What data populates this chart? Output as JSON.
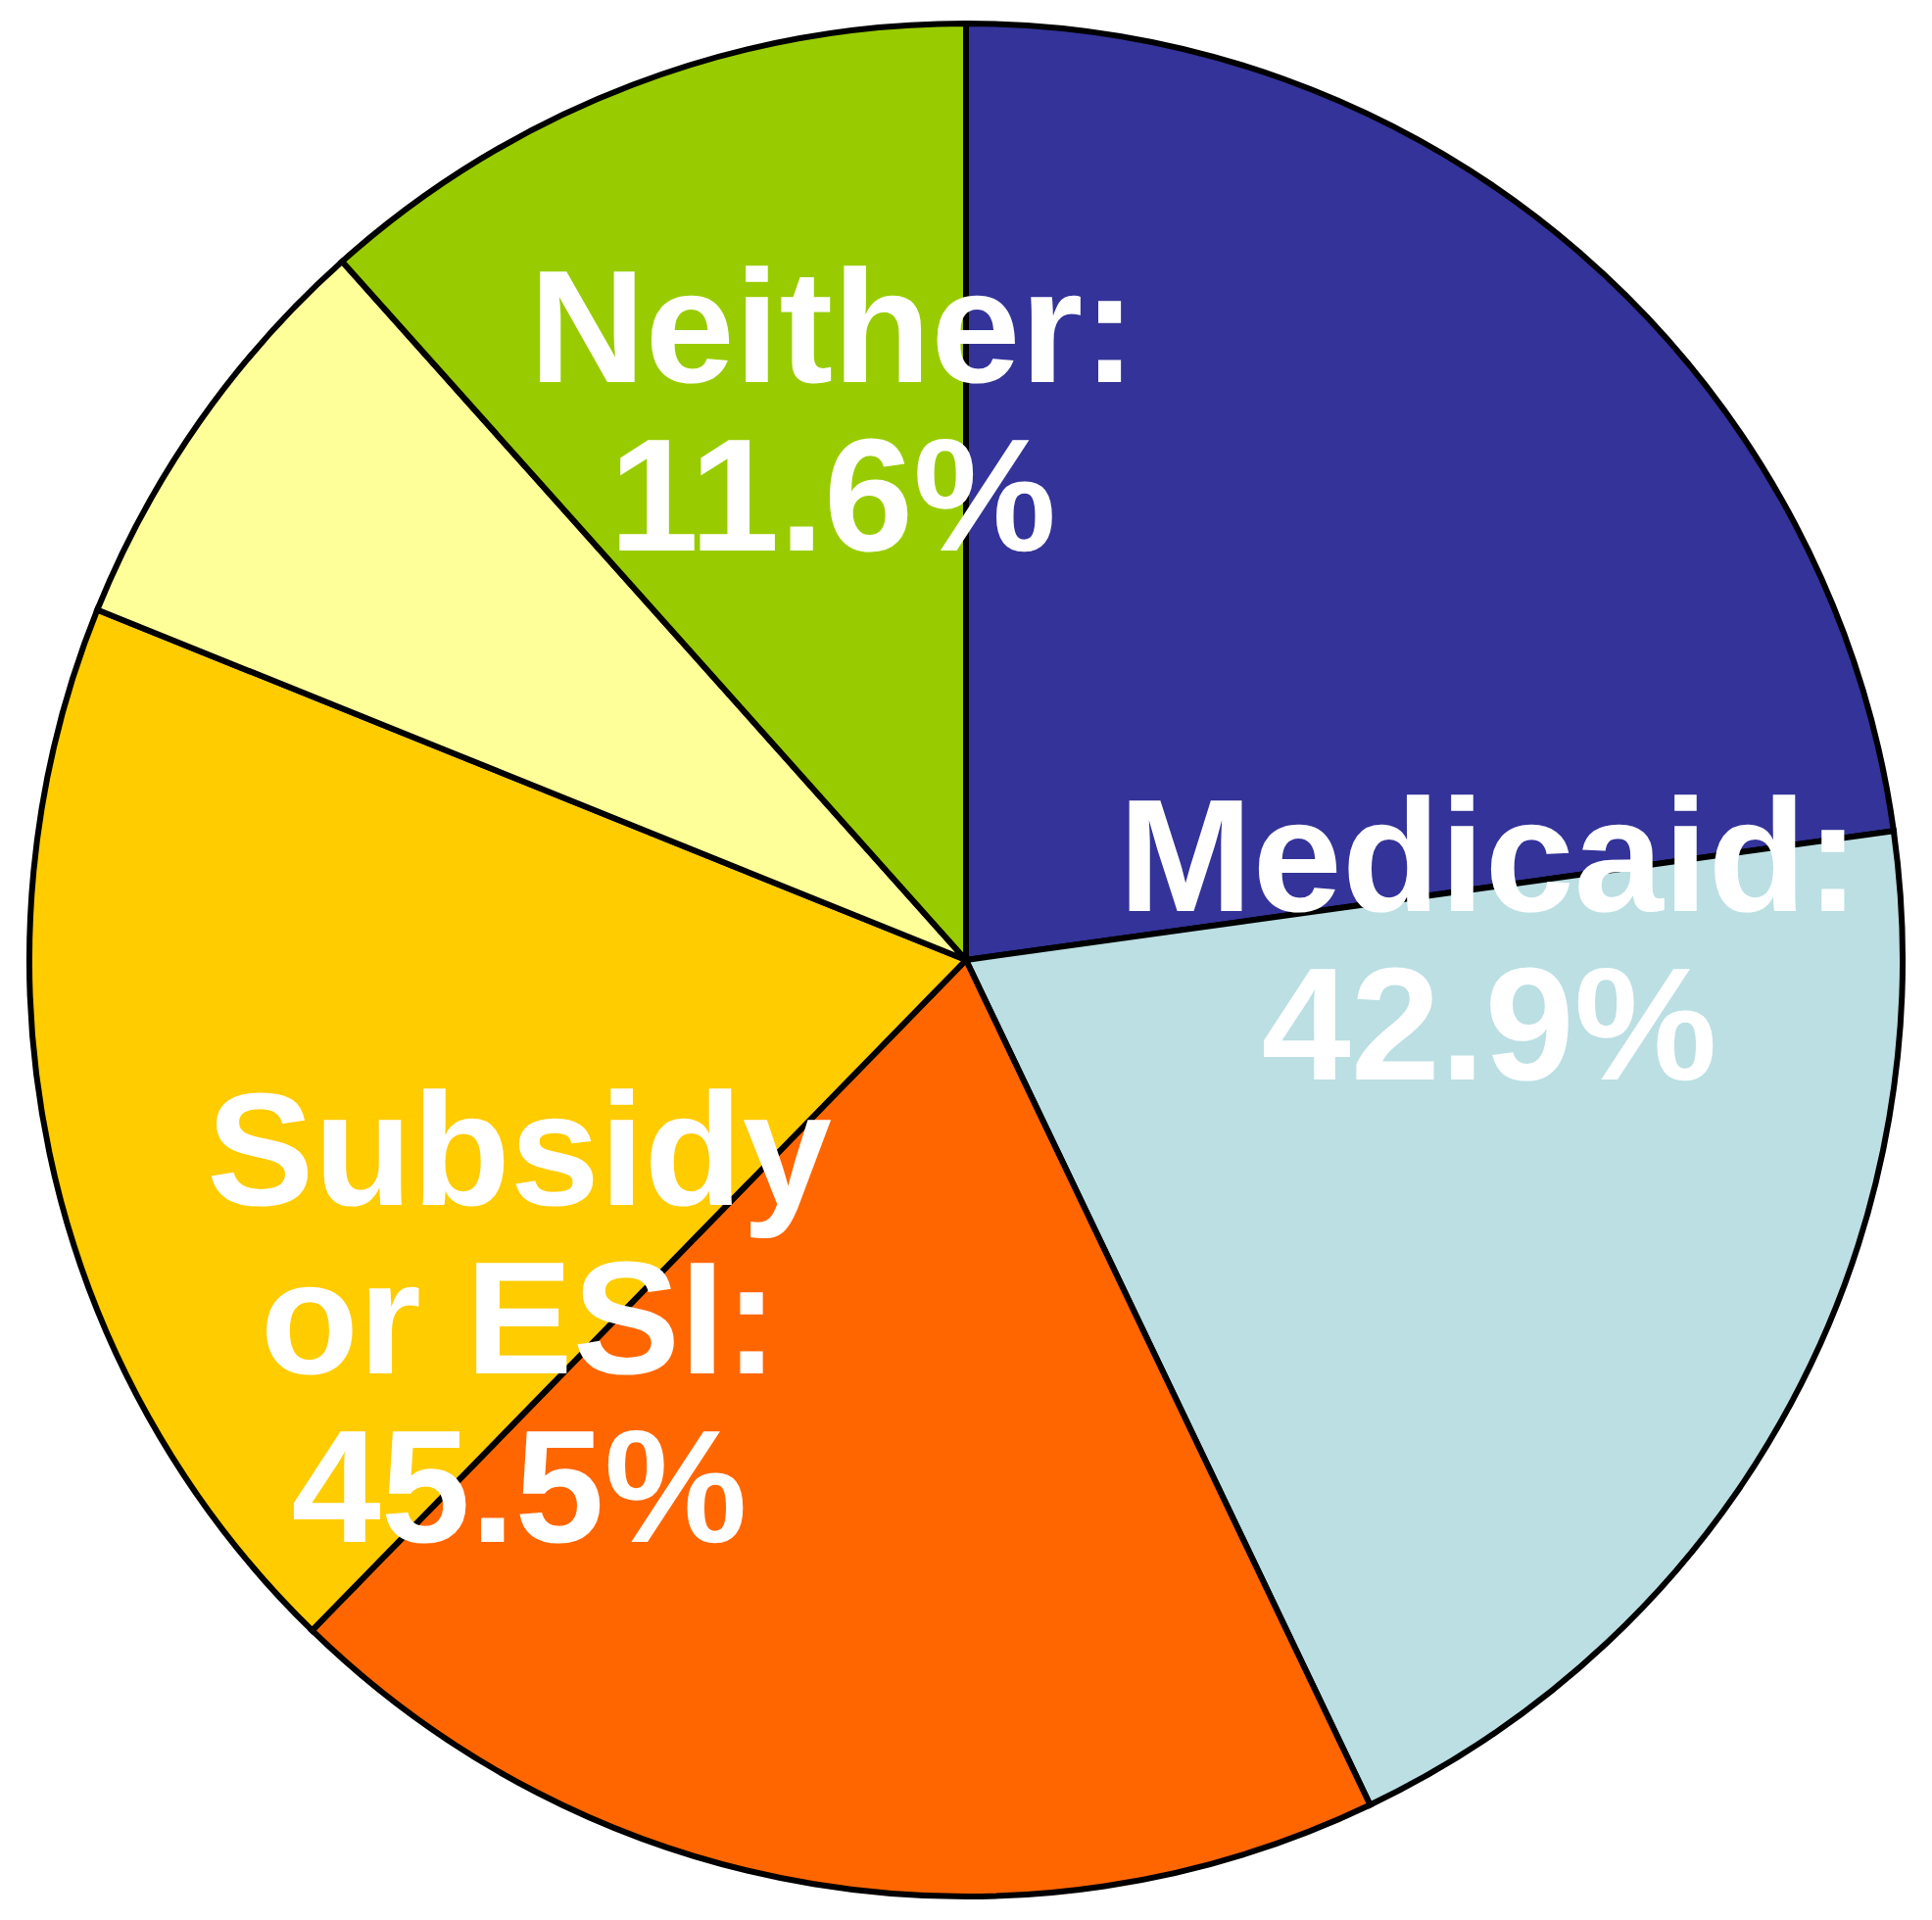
{
  "chart_data": {
    "type": "pie",
    "categories": [
      null,
      null,
      null,
      null,
      null,
      null
    ],
    "values": [
      22.8,
      20.1,
      19.4,
      18.8,
      7.3,
      11.6
    ],
    "colors": [
      "#333399",
      "#bbdfe3",
      "#ff6600",
      "#ffcc00",
      "#ffff99",
      "#99cc00"
    ],
    "annotations": [
      "Medicaid:\n42.9%",
      "Subsidy\nor ESI:\n45.5%",
      "Neither:\n11.6%"
    ]
  }
}
